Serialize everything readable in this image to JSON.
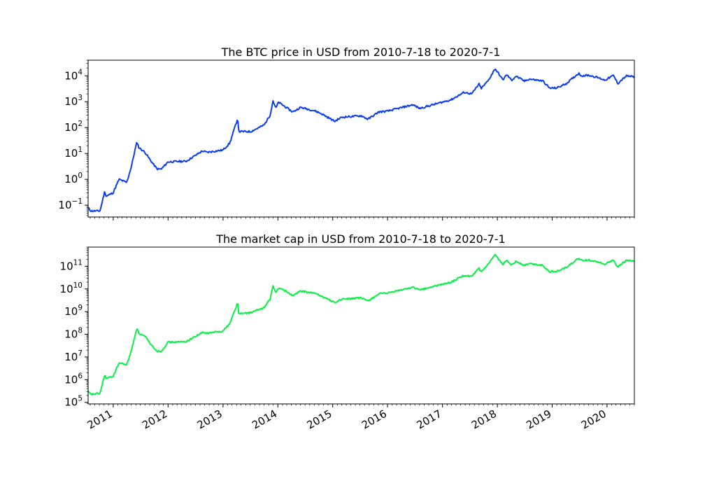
{
  "chart_data": [
    {
      "type": "line",
      "title": "The BTC price in USD from 2010-7-18 to 2020-7-1",
      "xlabel": "",
      "ylabel": "",
      "yscale": "log",
      "xlim": [
        "2010-07-18",
        "2020-07-01"
      ],
      "ylim": [
        0.035,
        40000
      ],
      "color": "#0a3cf0",
      "grid": false,
      "yticks": [
        {
          "base": "10",
          "exp": "−1",
          "value": 0.1
        },
        {
          "base": "10",
          "exp": "0",
          "value": 1
        },
        {
          "base": "10",
          "exp": "1",
          "value": 10
        },
        {
          "base": "10",
          "exp": "2",
          "value": 100
        },
        {
          "base": "10",
          "exp": "3",
          "value": 1000
        },
        {
          "base": "10",
          "exp": "4",
          "value": 10000
        }
      ],
      "series": [
        {
          "x": [
            "2010-07-18",
            "2010-08-05",
            "2010-10-05",
            "2010-11-06",
            "2010-11-15",
            "2010-12-31",
            "2011-02-09",
            "2011-04-01",
            "2011-05-01",
            "2011-06-08",
            "2011-06-20",
            "2011-08-01",
            "2011-09-10",
            "2011-10-20",
            "2011-11-18",
            "2011-12-31",
            "2012-03-01",
            "2012-05-01",
            "2012-08-17",
            "2012-09-15",
            "2012-12-31",
            "2013-02-15",
            "2013-04-09",
            "2013-04-16",
            "2013-07-05",
            "2013-10-01",
            "2013-11-10",
            "2013-11-30",
            "2013-12-18",
            "2014-01-05",
            "2014-02-25",
            "2014-04-10",
            "2014-06-01",
            "2014-09-01",
            "2014-10-15",
            "2015-01-14",
            "2015-03-01",
            "2015-07-10",
            "2015-08-24",
            "2015-11-04",
            "2016-01-01",
            "2016-06-17",
            "2016-08-02",
            "2016-12-31",
            "2017-03-01",
            "2017-05-25",
            "2017-07-15",
            "2017-09-01",
            "2017-09-15",
            "2017-11-01",
            "2017-12-17",
            "2018-02-06",
            "2018-03-05",
            "2018-04-06",
            "2018-05-05",
            "2018-06-30",
            "2018-08-01",
            "2018-10-31",
            "2018-12-15",
            "2019-02-01",
            "2019-04-05",
            "2019-06-26",
            "2019-07-15",
            "2019-09-01",
            "2019-10-26",
            "2019-12-18",
            "2020-02-13",
            "2020-03-13",
            "2020-04-01",
            "2020-05-08",
            "2020-06-01",
            "2020-07-01"
          ],
          "y": [
            0.08,
            0.06,
            0.06,
            0.35,
            0.22,
            0.3,
            1.0,
            0.75,
            3.0,
            29,
            17,
            11,
            5,
            2.5,
            2.5,
            4.7,
            4.9,
            5.0,
            12.5,
            11,
            13.5,
            25,
            230,
            70,
            70,
            125,
            300,
            1100,
            550,
            950,
            600,
            400,
            600,
            450,
            350,
            175,
            250,
            285,
            210,
            400,
            430,
            760,
            550,
            960,
            1200,
            2300,
            2000,
            4800,
            3200,
            6500,
            19000,
            7000,
            11000,
            6700,
            9700,
            6200,
            7500,
            6300,
            3300,
            3400,
            5000,
            12500,
            10000,
            10500,
            8700,
            6800,
            10300,
            5000,
            6400,
            9800,
            9500,
            9100
          ]
        }
      ]
    },
    {
      "type": "line",
      "title": "The market cap in USD from 2010-7-18 to 2020-7-1",
      "xlabel": "",
      "ylabel": "",
      "yscale": "log",
      "xlim": [
        "2010-07-18",
        "2020-07-01"
      ],
      "ylim": [
        85000,
        700000000000
      ],
      "color": "#0af046",
      "grid": false,
      "yticks": [
        {
          "base": "10",
          "exp": "5",
          "value": 100000
        },
        {
          "base": "10",
          "exp": "6",
          "value": 1000000
        },
        {
          "base": "10",
          "exp": "7",
          "value": 10000000
        },
        {
          "base": "10",
          "exp": "8",
          "value": 100000000
        },
        {
          "base": "10",
          "exp": "9",
          "value": 1000000000
        },
        {
          "base": "10",
          "exp": "10",
          "value": 10000000000
        },
        {
          "base": "10",
          "exp": "11",
          "value": 100000000000
        }
      ],
      "xticks": [
        "2011",
        "2012",
        "2013",
        "2014",
        "2015",
        "2016",
        "2017",
        "2018",
        "2019",
        "2020"
      ],
      "series": [
        {
          "x": [
            "2010-07-18",
            "2010-08-05",
            "2010-10-05",
            "2010-11-06",
            "2010-11-15",
            "2010-12-31",
            "2011-02-09",
            "2011-04-01",
            "2011-05-01",
            "2011-06-08",
            "2011-06-20",
            "2011-08-01",
            "2011-09-10",
            "2011-10-20",
            "2011-11-18",
            "2011-12-31",
            "2012-03-01",
            "2012-05-01",
            "2012-08-17",
            "2012-09-15",
            "2012-12-31",
            "2013-02-15",
            "2013-04-09",
            "2013-04-16",
            "2013-07-05",
            "2013-10-01",
            "2013-11-10",
            "2013-11-30",
            "2013-12-18",
            "2014-01-05",
            "2014-02-25",
            "2014-04-10",
            "2014-06-01",
            "2014-09-01",
            "2014-10-15",
            "2015-01-14",
            "2015-03-01",
            "2015-07-10",
            "2015-08-24",
            "2015-11-04",
            "2016-01-01",
            "2016-06-17",
            "2016-08-02",
            "2016-12-31",
            "2017-03-01",
            "2017-05-25",
            "2017-07-15",
            "2017-09-01",
            "2017-09-15",
            "2017-11-01",
            "2017-12-17",
            "2018-02-06",
            "2018-03-05",
            "2018-04-06",
            "2018-05-05",
            "2018-06-30",
            "2018-08-01",
            "2018-10-31",
            "2018-12-15",
            "2019-02-01",
            "2019-04-05",
            "2019-06-26",
            "2019-07-15",
            "2019-09-01",
            "2019-10-26",
            "2019-12-18",
            "2020-02-13",
            "2020-03-13",
            "2020-04-01",
            "2020-05-08",
            "2020-06-01",
            "2020-07-01"
          ],
          "y": [
            300000,
            220000,
            250000,
            1700000,
            1100000,
            1400000,
            5500000,
            4500000,
            18000000,
            200000000,
            110000000,
            80000000,
            35000000,
            18000000,
            18000000,
            45000000,
            45000000,
            48000000,
            120000000,
            110000000,
            140000000,
            300000000,
            2500000000,
            800000000,
            900000000,
            1500000000,
            3500000000,
            13000000000,
            7000000000,
            11000000000,
            8000000000,
            5000000000,
            8000000000,
            6500000000,
            5000000000,
            2500000000,
            3500000000,
            4000000000,
            3000000000,
            6000000000,
            6500000000,
            12000000000,
            9000000000,
            16000000000,
            20000000000,
            40000000000,
            35000000000,
            80000000000,
            55000000000,
            120000000000,
            320000000000,
            120000000000,
            190000000000,
            115000000000,
            165000000000,
            110000000000,
            130000000000,
            110000000000,
            58000000000,
            60000000000,
            90000000000,
            220000000000,
            180000000000,
            190000000000,
            160000000000,
            125000000000,
            185000000000,
            92000000000,
            118000000000,
            180000000000,
            175000000000,
            168000000000
          ]
        }
      ]
    }
  ]
}
